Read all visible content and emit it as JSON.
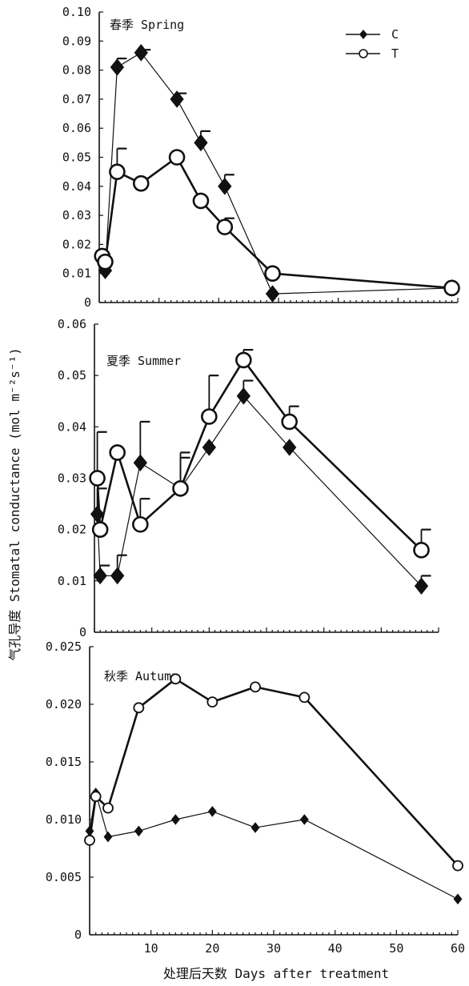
{
  "figure": {
    "ylabel": "气孔导度 Stomatal conductance (mol m⁻²s⁻¹)",
    "xlabel": "处理后天数 Days after treatment",
    "colors": {
      "ink": "#111111",
      "marker_fill_T": "#ffffff"
    }
  },
  "legend": {
    "items": [
      {
        "name": "C",
        "marker": "diamond-filled"
      },
      {
        "name": "T",
        "marker": "circle-open"
      }
    ],
    "placement": "top-right of first panel"
  },
  "chart_data": [
    {
      "type": "line",
      "title": "春季 Spring",
      "xlim": [
        0,
        60
      ],
      "ylim": [
        0,
        0.1
      ],
      "yticks": [
        "0",
        "0.01",
        "0.02",
        "0.03",
        "0.04",
        "0.05",
        "0.06",
        "0.07",
        "0.08",
        "0.09",
        "0.10"
      ],
      "series": [
        {
          "name": "C",
          "x": [
            0.5,
            1,
            3,
            7,
            13,
            17,
            21,
            29,
            59
          ],
          "y": [
            0.015,
            0.011,
            0.081,
            0.086,
            0.07,
            0.055,
            0.04,
            0.003,
            0.005
          ],
          "err": [
            0,
            0,
            0.003,
            0.001,
            0.002,
            0.004,
            0.004,
            0,
            0
          ]
        },
        {
          "name": "T",
          "x": [
            0.5,
            1,
            3,
            7,
            13,
            17,
            21,
            29,
            59
          ],
          "y": [
            0.016,
            0.014,
            0.045,
            0.041,
            0.05,
            0.035,
            0.026,
            0.01,
            0.005
          ],
          "err": [
            0,
            0,
            0.008,
            0,
            0,
            0,
            0.003,
            0,
            0
          ]
        }
      ]
    },
    {
      "type": "line",
      "title": "夏季 Summer",
      "xlim": [
        0,
        60
      ],
      "ylim": [
        0,
        0.06
      ],
      "yticks": [
        "0",
        "0.01",
        "0.02",
        "0.03",
        "0.04",
        "0.05",
        "0.06"
      ],
      "series": [
        {
          "name": "C",
          "x": [
            0.5,
            1,
            4,
            8,
            15,
            20,
            26,
            34,
            57
          ],
          "y": [
            0.023,
            0.011,
            0.011,
            0.033,
            0.028,
            0.036,
            0.046,
            0.036,
            0.009
          ],
          "err": [
            0.005,
            0.002,
            0.004,
            0.008,
            0.007,
            0,
            0.003,
            0,
            0.002
          ]
        },
        {
          "name": "T",
          "x": [
            0.5,
            1,
            4,
            8,
            15,
            20,
            26,
            34,
            57
          ],
          "y": [
            0.03,
            0.02,
            0.035,
            0.021,
            0.028,
            0.042,
            0.053,
            0.041,
            0.016
          ],
          "err": [
            0.009,
            0,
            0,
            0.005,
            0.006,
            0.008,
            0.002,
            0.003,
            0.004
          ]
        }
      ]
    },
    {
      "type": "line",
      "title": "秋季 Autumn",
      "xlim": [
        0,
        60
      ],
      "ylim": [
        0,
        0.025
      ],
      "yticks": [
        "0",
        "0.005",
        "0.010",
        "0.015",
        "0.020",
        "0.025"
      ],
      "xticks": [
        "10",
        "20",
        "30",
        "40",
        "50",
        "60"
      ],
      "series": [
        {
          "name": "C",
          "x": [
            0,
            1,
            3,
            8,
            14,
            20,
            27,
            35,
            60
          ],
          "y": [
            0.009,
            0.0123,
            0.0085,
            0.009,
            0.01,
            0.0107,
            0.0093,
            0.01,
            0.0031
          ]
        },
        {
          "name": "T",
          "x": [
            0,
            1,
            3,
            8,
            14,
            20,
            27,
            35,
            60
          ],
          "y": [
            0.0082,
            0.012,
            0.011,
            0.0197,
            0.0222,
            0.0202,
            0.0215,
            0.0206,
            0.006
          ]
        }
      ]
    }
  ]
}
